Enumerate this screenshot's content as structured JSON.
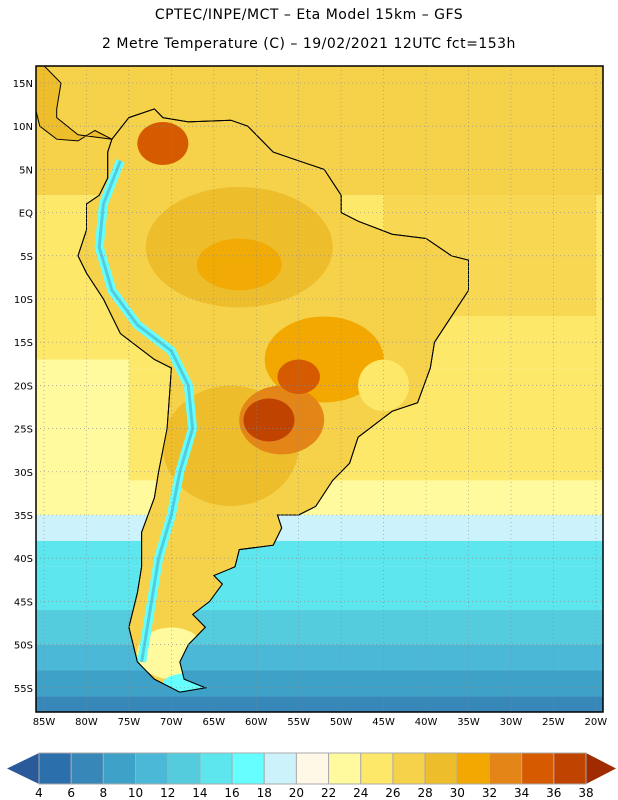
{
  "header": {
    "title": "CPTEC/INPE/MCT –  Eta Model 15km – GFS",
    "subtitle": "2 Metre Temperature (C) – 19/02/2021 12UTC fct=153h"
  },
  "map": {
    "lat_labels": [
      "15N",
      "10N",
      "5N",
      "EQ",
      "5S",
      "10S",
      "15S",
      "20S",
      "25S",
      "30S",
      "35S",
      "40S",
      "45S",
      "50S",
      "55S"
    ],
    "lat_values": [
      15,
      10,
      5,
      0,
      -5,
      -10,
      -15,
      -20,
      -25,
      -30,
      -35,
      -40,
      -45,
      -50,
      -55
    ],
    "lon_labels": [
      "85W",
      "80W",
      "75W",
      "70W",
      "65W",
      "60W",
      "55W",
      "50W",
      "45W",
      "40W",
      "35W",
      "30W",
      "25W",
      "20W"
    ],
    "lon_values": [
      -85,
      -80,
      -75,
      -70,
      -65,
      -60,
      -55,
      -50,
      -45,
      -40,
      -35,
      -30,
      -25,
      -20
    ],
    "ocean_color": "#fde86a",
    "land_color": "#f5d24a"
  },
  "colorbar": {
    "labels": [
      "4",
      "6",
      "8",
      "10",
      "12",
      "14",
      "16",
      "18",
      "20",
      "22",
      "24",
      "26",
      "28",
      "30",
      "32",
      "34",
      "36",
      "38"
    ],
    "colors": [
      "#2c6fad",
      "#3788b8",
      "#3ea1c8",
      "#4ab8d6",
      "#54ccdd",
      "#5de6ee",
      "#66ffff",
      "#ccf3fb",
      "#fff8e6",
      "#fffa9e",
      "#fde86a",
      "#f5d24a",
      "#eebd2c",
      "#f2a800",
      "#e48518",
      "#d65a00",
      "#c04300"
    ],
    "low_color": "#2a5a9a",
    "high_color": "#a02b00"
  }
}
